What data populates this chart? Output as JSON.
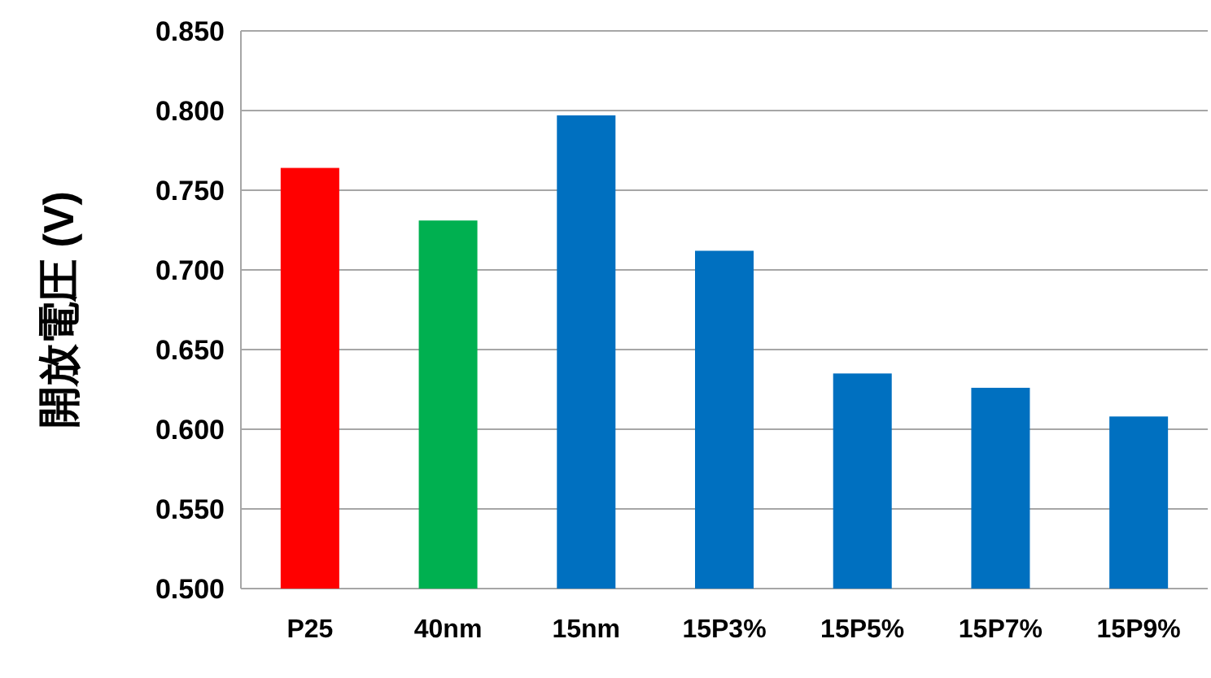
{
  "chart_data": {
    "type": "bar",
    "ylabel": "開放電圧 (V)",
    "categories": [
      "P25",
      "40nm",
      "15nm",
      "15P3%",
      "15P5%",
      "15P7%",
      "15P9%"
    ],
    "values": [
      0.764,
      0.731,
      0.797,
      0.712,
      0.635,
      0.626,
      0.608
    ],
    "colors": [
      "#ff0000",
      "#00b050",
      "#0070c0",
      "#0070c0",
      "#0070c0",
      "#0070c0",
      "#0070c0"
    ],
    "ylim": [
      0.5,
      0.85
    ],
    "yticks": [
      {
        "value": 0.5,
        "label": "0.500"
      },
      {
        "value": 0.55,
        "label": "0.550"
      },
      {
        "value": 0.6,
        "label": "0.600"
      },
      {
        "value": 0.65,
        "label": "0.650"
      },
      {
        "value": 0.7,
        "label": "0.700"
      },
      {
        "value": 0.75,
        "label": "0.750"
      },
      {
        "value": 0.8,
        "label": "0.800"
      },
      {
        "value": 0.85,
        "label": "0.850"
      }
    ],
    "grid": "y"
  }
}
